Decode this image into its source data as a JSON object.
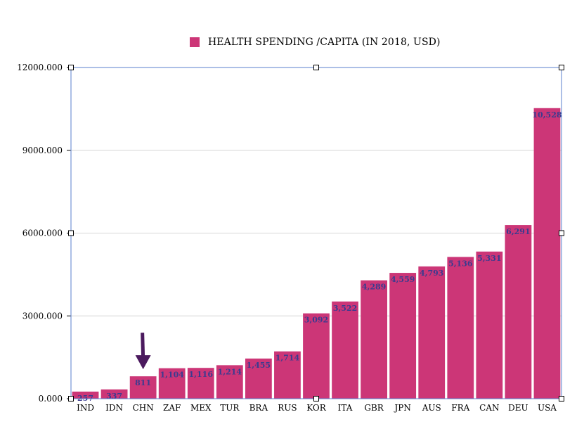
{
  "chart_data": {
    "type": "bar",
    "title": "",
    "legend": {
      "label": "HEALTH SPENDING /CAPITA (IN 2018, USD)",
      "position": "top-center"
    },
    "xlabel": "",
    "ylabel": "",
    "ylim": [
      0,
      12000
    ],
    "yticks": [
      {
        "value": 0,
        "label": "0.000"
      },
      {
        "value": 3000,
        "label": "3000.000"
      },
      {
        "value": 6000,
        "label": "6000.000"
      },
      {
        "value": 9000,
        "label": "9000.000"
      },
      {
        "value": 12000,
        "label": "12000.000"
      }
    ],
    "grid": true,
    "categories": [
      "IND",
      "IDN",
      "CHN",
      "ZAF",
      "MEX",
      "TUR",
      "BRA",
      "RUS",
      "KOR",
      "ITA",
      "GBR",
      "JPN",
      "AUS",
      "FRA",
      "CAN",
      "DEU",
      "USA"
    ],
    "series": [
      {
        "name": "HEALTH SPENDING /CAPITA (IN 2018, USD)",
        "values": [
          257,
          337,
          811,
          1104,
          1116,
          1214,
          1455,
          1714,
          3092,
          3522,
          4289,
          4559,
          4793,
          5136,
          5331,
          6291,
          10528
        ],
        "data_labels": [
          "257",
          "337",
          "811",
          "1,104",
          "1,116",
          "1,214",
          "1,455",
          "1,714",
          "3,092",
          "3,522",
          "4,289",
          "4,559",
          "4,793",
          "5,136",
          "5,331",
          "6,291",
          "10,528"
        ]
      }
    ],
    "annotation": {
      "type": "arrow",
      "target_category": "CHN",
      "direction": "down"
    }
  },
  "colors": {
    "bar": "#cc3677",
    "data_label": "#3b3b8f",
    "grid": "#d6d6d6",
    "axis": "#000000",
    "arrow": "#4b1a5e",
    "selection": "#5a7fcc"
  }
}
